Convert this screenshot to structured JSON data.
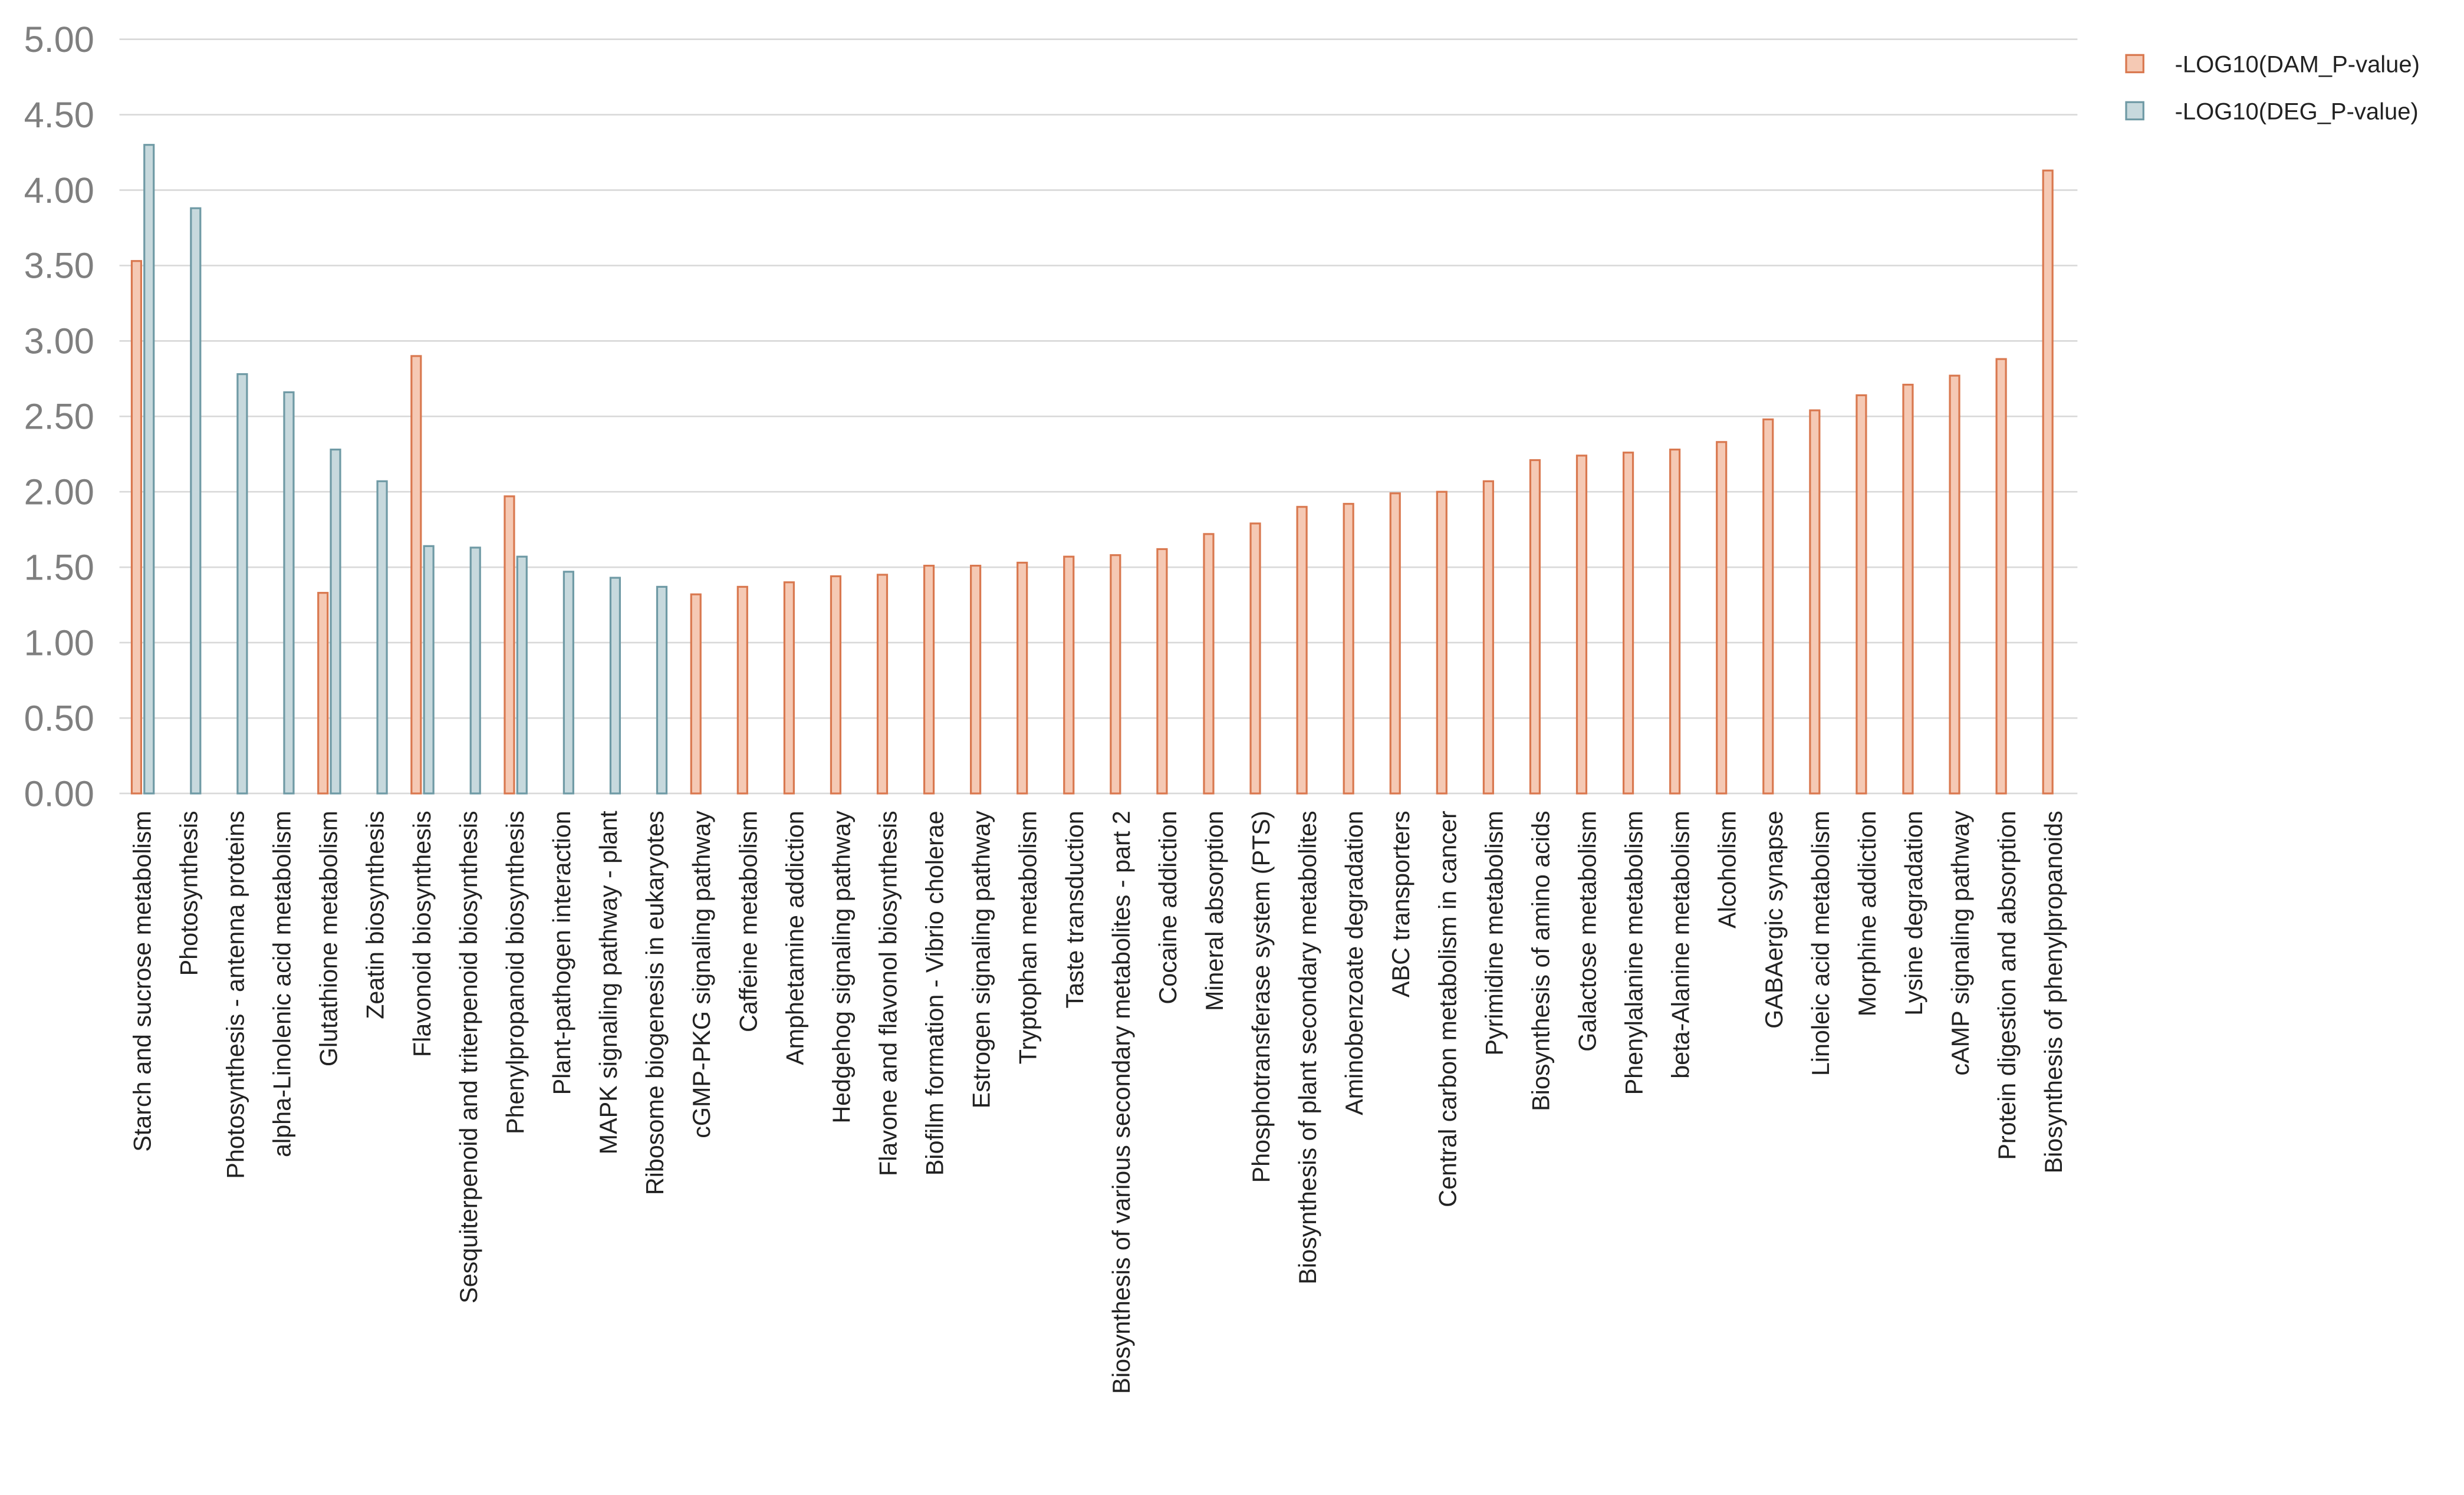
{
  "chart_data": {
    "type": "bar",
    "categories": [
      "Starch and sucrose metabolism",
      "Photosynthesis",
      "Photosynthesis - antenna proteins",
      "alpha-Linolenic acid metabolism",
      "Glutathione metabolism",
      "Zeatin biosynthesis",
      "Flavonoid biosynthesis",
      "Sesquiterpenoid and triterpenoid biosynthesis",
      "Phenylpropanoid biosynthesis",
      "Plant-pathogen interaction",
      "MAPK signaling pathway - plant",
      "Ribosome biogenesis in eukaryotes",
      "cGMP-PKG signaling pathway",
      "Caffeine metabolism",
      "Amphetamine addiction",
      "Hedgehog signaling pathway",
      "Flavone and flavonol biosynthesis",
      "Biofilm formation - Vibrio cholerae",
      "Estrogen signaling pathway",
      "Tryptophan metabolism",
      "Taste transduction",
      "Biosynthesis of various secondary metabolites - part 2",
      "Cocaine addiction",
      "Mineral absorption",
      "Phosphotransferase system (PTS)",
      "Biosynthesis of plant secondary metabolites",
      "Aminobenzoate degradation",
      "ABC transporters",
      "Central carbon metabolism in cancer",
      "Pyrimidine metabolism",
      "Biosynthesis of amino acids",
      "Galactose metabolism",
      "Phenylalanine metabolism",
      "beta-Alanine metabolism",
      "Alcoholism",
      "GABAergic synapse",
      "Linoleic acid metabolism",
      "Morphine addiction",
      "Lysine degradation",
      "cAMP signaling pathway",
      "Protein digestion and absorption",
      "Biosynthesis of phenylpropanoids"
    ],
    "series": [
      {
        "name": "-LOG10(DAM_P-value)",
        "color": "#f5c9b4",
        "edge_color": "#d9784f",
        "values": [
          3.53,
          null,
          null,
          null,
          1.33,
          null,
          2.9,
          null,
          1.97,
          null,
          null,
          null,
          1.32,
          1.37,
          1.4,
          1.44,
          1.45,
          1.51,
          1.51,
          1.53,
          1.57,
          1.58,
          1.62,
          1.72,
          1.79,
          1.9,
          1.92,
          1.99,
          2.0,
          2.07,
          2.21,
          2.24,
          2.26,
          2.28,
          2.33,
          2.48,
          2.54,
          2.64,
          2.71,
          2.77,
          2.88,
          4.13
        ]
      },
      {
        "name": "-LOG10(DEG_P-value)",
        "color": "#c7d9dd",
        "edge_color": "#6f9aa5",
        "values": [
          4.3,
          3.88,
          2.78,
          2.66,
          2.28,
          2.07,
          1.64,
          1.63,
          1.57,
          1.47,
          1.43,
          1.37,
          null,
          null,
          null,
          null,
          null,
          null,
          null,
          null,
          null,
          null,
          null,
          null,
          null,
          null,
          null,
          null,
          null,
          null,
          null,
          null,
          null,
          null,
          null,
          null,
          null,
          null,
          null,
          null,
          null,
          null
        ]
      }
    ],
    "ylim": [
      0,
      5
    ],
    "yticks": [
      {
        "value": 0,
        "label": "0.00"
      },
      {
        "value": 0.5,
        "label": "0.50"
      },
      {
        "value": 1,
        "label": "1.00"
      },
      {
        "value": 1.5,
        "label": "1.50"
      },
      {
        "value": 2,
        "label": "2.00"
      },
      {
        "value": 2.5,
        "label": "2.50"
      },
      {
        "value": 3,
        "label": "3.00"
      },
      {
        "value": 3.5,
        "label": "3.50"
      },
      {
        "value": 4,
        "label": "4.00"
      },
      {
        "value": 4.5,
        "label": "4.50"
      },
      {
        "value": 5,
        "label": "5.00"
      }
    ],
    "grid": true,
    "legend": "top-right"
  }
}
